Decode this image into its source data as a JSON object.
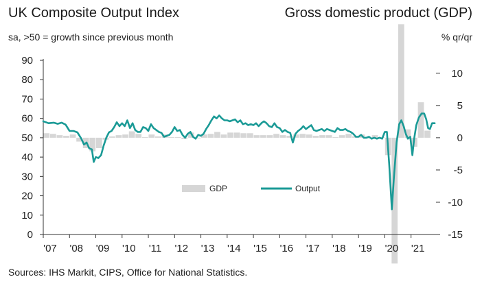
{
  "header": {
    "title_left": "UK Composite Output Index",
    "subtitle_left": "sa, >50 = growth since previous month",
    "title_right": "Gross domestic product (GDP)",
    "subtitle_right": "% qr/qr"
  },
  "footer": {
    "source": "Sources: IHS Markit, CIPS, Office for National Statistics."
  },
  "colors": {
    "output_line": "#1a9a96",
    "gdp_bar": "#d6d6d6",
    "axis": "#333333"
  },
  "chart_data": {
    "type": "bar+line",
    "left_axis": {
      "ylim": [
        0,
        90
      ],
      "ticks": [
        0,
        10,
        20,
        30,
        40,
        50,
        60,
        70,
        80,
        90
      ]
    },
    "right_axis": {
      "ylim": [
        -15,
        12
      ],
      "ticks": [
        -15,
        -10,
        -5,
        0,
        5,
        10
      ]
    },
    "x_axis": {
      "start": 2007.0,
      "end": 2021.95,
      "tick_labels": [
        "'07",
        "'08",
        "'09",
        "'10",
        "'11",
        "'12",
        "'13",
        "'14",
        "'15",
        "'16",
        "'17",
        "'18",
        "'19",
        "'20",
        "'21"
      ],
      "tick_years": [
        2007,
        2008,
        2009,
        2010,
        2011,
        2012,
        2013,
        2014,
        2015,
        2016,
        2017,
        2018,
        2019,
        2020,
        2021
      ]
    },
    "legend": [
      {
        "name": "GDP",
        "kind": "bar"
      },
      {
        "name": "Output",
        "kind": "line"
      }
    ],
    "gdp_series": {
      "name": "GDP",
      "axis": "right",
      "quarters": [
        "2007-Q1",
        "2007-Q2",
        "2007-Q3",
        "2007-Q4",
        "2008-Q1",
        "2008-Q2",
        "2008-Q3",
        "2008-Q4",
        "2009-Q1",
        "2009-Q2",
        "2009-Q3",
        "2009-Q4",
        "2010-Q1",
        "2010-Q2",
        "2010-Q3",
        "2010-Q4",
        "2011-Q1",
        "2011-Q2",
        "2011-Q3",
        "2011-Q4",
        "2012-Q1",
        "2012-Q2",
        "2012-Q3",
        "2012-Q4",
        "2013-Q1",
        "2013-Q2",
        "2013-Q3",
        "2013-Q4",
        "2014-Q1",
        "2014-Q2",
        "2014-Q3",
        "2014-Q4",
        "2015-Q1",
        "2015-Q2",
        "2015-Q3",
        "2015-Q4",
        "2016-Q1",
        "2016-Q2",
        "2016-Q3",
        "2016-Q4",
        "2017-Q1",
        "2017-Q2",
        "2017-Q3",
        "2017-Q4",
        "2018-Q1",
        "2018-Q2",
        "2018-Q3",
        "2018-Q4",
        "2019-Q1",
        "2019-Q2",
        "2019-Q3",
        "2019-Q4",
        "2020-Q1",
        "2020-Q2",
        "2020-Q3",
        "2020-Q4",
        "2021-Q1",
        "2021-Q2",
        "2021-Q3"
      ],
      "values": [
        0.7,
        0.6,
        0.4,
        0.3,
        0.5,
        -0.6,
        -1.6,
        -2.1,
        -1.6,
        -0.3,
        0.2,
        0.4,
        0.5,
        1.0,
        0.6,
        0.1,
        0.5,
        0.2,
        0.5,
        0.1,
        0.1,
        -0.2,
        0.8,
        -0.1,
        0.5,
        0.6,
        0.9,
        0.5,
        0.8,
        0.8,
        0.7,
        0.7,
        0.4,
        0.4,
        0.4,
        0.6,
        0.4,
        0.3,
        0.5,
        0.6,
        0.5,
        0.3,
        0.4,
        0.4,
        0.1,
        0.4,
        0.6,
        0.2,
        0.5,
        -0.1,
        0.4,
        0.1,
        -2.7,
        -19.5,
        17.6,
        1.3,
        -1.4,
        5.5,
        1.1
      ]
    },
    "output_series": {
      "name": "Output",
      "axis": "left",
      "points": [
        [
          2007.0,
          58.5
        ],
        [
          2007.2,
          57.5
        ],
        [
          2007.4,
          57.8
        ],
        [
          2007.55,
          57.2
        ],
        [
          2007.7,
          57.8
        ],
        [
          2007.85,
          56.8
        ],
        [
          2008.0,
          53.5
        ],
        [
          2008.15,
          53.5
        ],
        [
          2008.3,
          52.8
        ],
        [
          2008.45,
          49.5
        ],
        [
          2008.55,
          46.5
        ],
        [
          2008.65,
          47.5
        ],
        [
          2008.75,
          44.5
        ],
        [
          2008.85,
          44.0
        ],
        [
          2008.92,
          37.5
        ],
        [
          2009.0,
          40.0
        ],
        [
          2009.1,
          39.5
        ],
        [
          2009.2,
          41.0
        ],
        [
          2009.3,
          46.0
        ],
        [
          2009.4,
          50.0
        ],
        [
          2009.5,
          52.8
        ],
        [
          2009.6,
          53.5
        ],
        [
          2009.7,
          55.5
        ],
        [
          2009.8,
          58.0
        ],
        [
          2009.9,
          56.0
        ],
        [
          2010.0,
          57.5
        ],
        [
          2010.1,
          56.0
        ],
        [
          2010.2,
          59.0
        ],
        [
          2010.3,
          55.0
        ],
        [
          2010.4,
          57.5
        ],
        [
          2010.5,
          54.0
        ],
        [
          2010.6,
          53.0
        ],
        [
          2010.7,
          53.0
        ],
        [
          2010.8,
          55.5
        ],
        [
          2010.9,
          55.0
        ],
        [
          2011.0,
          53.5
        ],
        [
          2011.1,
          57.0
        ],
        [
          2011.2,
          55.0
        ],
        [
          2011.3,
          54.0
        ],
        [
          2011.4,
          53.0
        ],
        [
          2011.5,
          52.5
        ],
        [
          2011.6,
          50.5
        ],
        [
          2011.7,
          51.0
        ],
        [
          2011.8,
          51.5
        ],
        [
          2011.9,
          53.0
        ],
        [
          2012.0,
          55.5
        ],
        [
          2012.1,
          53.5
        ],
        [
          2012.2,
          54.0
        ],
        [
          2012.3,
          51.5
        ],
        [
          2012.4,
          50.0
        ],
        [
          2012.5,
          52.0
        ],
        [
          2012.6,
          53.0
        ],
        [
          2012.7,
          50.5
        ],
        [
          2012.8,
          49.5
        ],
        [
          2012.9,
          51.5
        ],
        [
          2013.0,
          51.0
        ],
        [
          2013.1,
          52.0
        ],
        [
          2013.2,
          54.5
        ],
        [
          2013.3,
          56.5
        ],
        [
          2013.4,
          59.0
        ],
        [
          2013.5,
          61.0
        ],
        [
          2013.6,
          60.0
        ],
        [
          2013.7,
          61.5
        ],
        [
          2013.8,
          60.0
        ],
        [
          2013.9,
          59.0
        ],
        [
          2014.0,
          59.0
        ],
        [
          2014.1,
          58.5
        ],
        [
          2014.2,
          59.0
        ],
        [
          2014.3,
          59.5
        ],
        [
          2014.4,
          58.0
        ],
        [
          2014.5,
          59.0
        ],
        [
          2014.6,
          57.0
        ],
        [
          2014.7,
          57.5
        ],
        [
          2014.8,
          56.5
        ],
        [
          2014.9,
          57.0
        ],
        [
          2015.0,
          56.5
        ],
        [
          2015.1,
          57.5
        ],
        [
          2015.2,
          56.0
        ],
        [
          2015.3,
          57.5
        ],
        [
          2015.4,
          58.5
        ],
        [
          2015.5,
          57.5
        ],
        [
          2015.6,
          56.0
        ],
        [
          2015.7,
          55.5
        ],
        [
          2015.8,
          57.5
        ],
        [
          2015.9,
          55.5
        ],
        [
          2016.0,
          55.0
        ],
        [
          2016.1,
          53.0
        ],
        [
          2016.2,
          54.0
        ],
        [
          2016.3,
          53.0
        ],
        [
          2016.4,
          52.5
        ],
        [
          2016.5,
          47.5
        ],
        [
          2016.6,
          52.0
        ],
        [
          2016.7,
          53.5
        ],
        [
          2016.8,
          54.5
        ],
        [
          2016.9,
          56.0
        ],
        [
          2017.0,
          54.5
        ],
        [
          2017.1,
          55.5
        ],
        [
          2017.2,
          56.5
        ],
        [
          2017.3,
          54.0
        ],
        [
          2017.4,
          53.5
        ],
        [
          2017.5,
          54.0
        ],
        [
          2017.6,
          54.5
        ],
        [
          2017.7,
          53.5
        ],
        [
          2017.8,
          54.5
        ],
        [
          2017.9,
          54.0
        ],
        [
          2018.0,
          53.5
        ],
        [
          2018.1,
          53.0
        ],
        [
          2018.2,
          55.0
        ],
        [
          2018.3,
          54.0
        ],
        [
          2018.4,
          54.0
        ],
        [
          2018.5,
          54.5
        ],
        [
          2018.6,
          53.5
        ],
        [
          2018.7,
          53.0
        ],
        [
          2018.8,
          52.0
        ],
        [
          2018.9,
          50.5
        ],
        [
          2019.0,
          50.5
        ],
        [
          2019.1,
          51.5
        ],
        [
          2019.2,
          50.0
        ],
        [
          2019.3,
          50.0
        ],
        [
          2019.4,
          50.5
        ],
        [
          2019.5,
          49.5
        ],
        [
          2019.6,
          50.0
        ],
        [
          2019.7,
          49.5
        ],
        [
          2019.8,
          50.0
        ],
        [
          2019.9,
          49.5
        ],
        [
          2020.0,
          53.0
        ],
        [
          2020.08,
          53.0
        ],
        [
          2020.17,
          36.0
        ],
        [
          2020.27,
          13.0
        ],
        [
          2020.35,
          30.0
        ],
        [
          2020.45,
          47.5
        ],
        [
          2020.55,
          57.0
        ],
        [
          2020.63,
          59.0
        ],
        [
          2020.72,
          56.0
        ],
        [
          2020.8,
          52.0
        ],
        [
          2020.88,
          49.5
        ],
        [
          2020.97,
          50.5
        ],
        [
          2021.05,
          41.0
        ],
        [
          2021.12,
          49.5
        ],
        [
          2021.2,
          56.5
        ],
        [
          2021.3,
          60.5
        ],
        [
          2021.4,
          62.5
        ],
        [
          2021.5,
          62.5
        ],
        [
          2021.58,
          59.5
        ],
        [
          2021.65,
          55.0
        ],
        [
          2021.72,
          54.5
        ],
        [
          2021.8,
          57.5
        ],
        [
          2021.9,
          57.5
        ]
      ]
    }
  }
}
